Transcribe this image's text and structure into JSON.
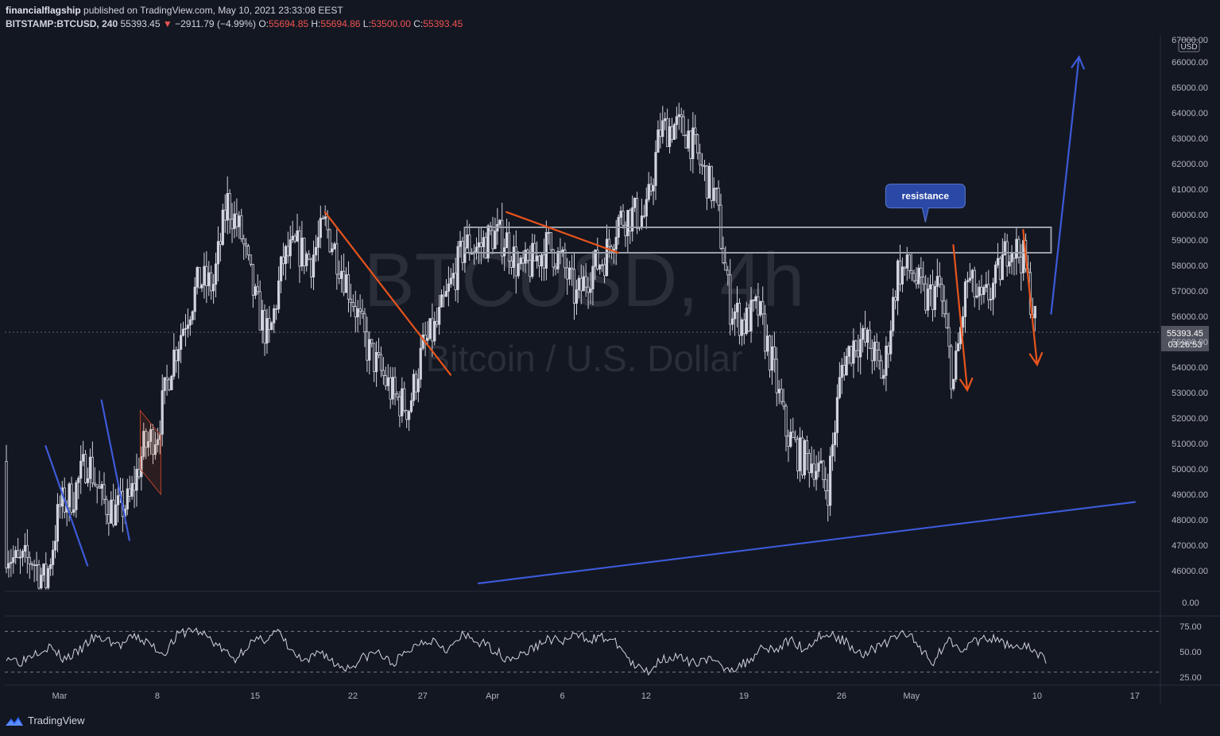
{
  "header": {
    "author": "financialflagship",
    "published_text": "published on TradingView.com, May 10, 2021 23:33:08 EEST",
    "symbol": "BITSTAMP:BTCUSD, 240",
    "last_price": "55393.45",
    "change_arrow": "▼",
    "change": "−2911.79 (−4.99%)",
    "o_label": "O:",
    "o_value": "55694.85",
    "h_label": "H:",
    "h_value": "55694.86",
    "l_label": "L:",
    "l_value": "53500.00",
    "c_label": "C:",
    "c_value": "55393.45"
  },
  "watermark": {
    "symbol": "BTCUSD, 4h",
    "description": "Bitcoin / U.S. Dollar"
  },
  "price_scale": {
    "currency": "USD",
    "ticks": [
      "67000.00",
      "66000.00",
      "65000.00",
      "64000.00",
      "63000.00",
      "62000.00",
      "61000.00",
      "60000.00",
      "59000.00",
      "58000.00",
      "57000.00",
      "56000.00",
      "55000.00",
      "54000.00",
      "53000.00",
      "52000.00",
      "51000.00",
      "50000.00",
      "49000.00",
      "48000.00",
      "47000.00",
      "46000.00"
    ],
    "last_price_label": "55393.45",
    "countdown_label": "03:26:53",
    "zero_label": "0.00"
  },
  "rsi_scale": {
    "ticks": [
      "75.00",
      "50.00",
      "25.00"
    ]
  },
  "time_axis": {
    "labels": [
      {
        "text": "Mar",
        "date": "2021-03-01"
      },
      {
        "text": "8",
        "date": "2021-03-08"
      },
      {
        "text": "15",
        "date": "2021-03-15"
      },
      {
        "text": "22",
        "date": "2021-03-22"
      },
      {
        "text": "27",
        "date": "2021-03-27"
      },
      {
        "text": "Apr",
        "date": "2021-04-01"
      },
      {
        "text": "6",
        "date": "2021-04-06"
      },
      {
        "text": "12",
        "date": "2021-04-12"
      },
      {
        "text": "19",
        "date": "2021-04-19"
      },
      {
        "text": "26",
        "date": "2021-04-26"
      },
      {
        "text": "May",
        "date": "2021-05-01"
      },
      {
        "text": "10",
        "date": "2021-05-10"
      },
      {
        "text": "17",
        "date": "2021-05-17"
      }
    ]
  },
  "annotations": {
    "resistance_label": "resistance"
  },
  "footer": {
    "brand": "TradingView"
  },
  "colors": {
    "background": "#131722",
    "candle": "#d1d4dc",
    "orange_line": "#e8541c",
    "blue_line": "#3d5ad8",
    "resistance_box": "#9aa0aa",
    "callout_bg": "#2a48a5",
    "price_label_bg": "#50535e"
  },
  "chart_data": {
    "type": "candlestick",
    "title": "BTCUSD, 4h",
    "xlabel": "",
    "ylabel": "USD",
    "ylim": [
      45300,
      67000
    ],
    "xlim": [
      "2021-02-23",
      "2021-05-20"
    ],
    "interval": "4h",
    "series_close": [
      {
        "date": "2021-02-23",
        "close": 50300
      },
      {
        "date": "2021-02-24",
        "close": 48200
      },
      {
        "date": "2021-02-25",
        "close": 47000
      },
      {
        "date": "2021-02-26",
        "close": 46200
      },
      {
        "date": "2021-02-27",
        "close": 46500
      },
      {
        "date": "2021-02-28",
        "close": 45500
      },
      {
        "date": "2021-03-01",
        "close": 48500
      },
      {
        "date": "2021-03-02",
        "close": 49000
      },
      {
        "date": "2021-03-03",
        "close": 50400
      },
      {
        "date": "2021-03-04",
        "close": 48800
      },
      {
        "date": "2021-03-05",
        "close": 48300
      },
      {
        "date": "2021-03-06",
        "close": 48700
      },
      {
        "date": "2021-03-07",
        "close": 50800
      },
      {
        "date": "2021-03-08",
        "close": 51500
      },
      {
        "date": "2021-03-09",
        "close": 54200
      },
      {
        "date": "2021-03-10",
        "close": 55900
      },
      {
        "date": "2021-03-11",
        "close": 57400
      },
      {
        "date": "2021-03-12",
        "close": 57200
      },
      {
        "date": "2021-03-13",
        "close": 60500
      },
      {
        "date": "2021-03-14",
        "close": 59200
      },
      {
        "date": "2021-03-15",
        "close": 56600
      },
      {
        "date": "2021-03-16",
        "close": 55000
      },
      {
        "date": "2021-03-17",
        "close": 58200
      },
      {
        "date": "2021-03-18",
        "close": 58700
      },
      {
        "date": "2021-03-19",
        "close": 58200
      },
      {
        "date": "2021-03-20",
        "close": 59600
      },
      {
        "date": "2021-03-21",
        "close": 58200
      },
      {
        "date": "2021-03-22",
        "close": 56700
      },
      {
        "date": "2021-03-23",
        "close": 54800
      },
      {
        "date": "2021-03-24",
        "close": 53800
      },
      {
        "date": "2021-03-25",
        "close": 52800
      },
      {
        "date": "2021-03-26",
        "close": 52400
      },
      {
        "date": "2021-03-27",
        "close": 54700
      },
      {
        "date": "2021-03-28",
        "close": 55600
      },
      {
        "date": "2021-03-29",
        "close": 57200
      },
      {
        "date": "2021-03-30",
        "close": 58800
      },
      {
        "date": "2021-03-31",
        "close": 58700
      },
      {
        "date": "2021-04-01",
        "close": 59200
      },
      {
        "date": "2021-04-02",
        "close": 59000
      },
      {
        "date": "2021-04-03",
        "close": 57700
      },
      {
        "date": "2021-04-04",
        "close": 58200
      },
      {
        "date": "2021-04-05",
        "close": 58800
      },
      {
        "date": "2021-04-06",
        "close": 58100
      },
      {
        "date": "2021-04-07",
        "close": 56700
      },
      {
        "date": "2021-04-08",
        "close": 57800
      },
      {
        "date": "2021-04-09",
        "close": 58300
      },
      {
        "date": "2021-04-10",
        "close": 59800
      },
      {
        "date": "2021-04-11",
        "close": 60000
      },
      {
        "date": "2021-04-12",
        "close": 59900
      },
      {
        "date": "2021-04-13",
        "close": 63300
      },
      {
        "date": "2021-04-14",
        "close": 63500
      },
      {
        "date": "2021-04-15",
        "close": 63200
      },
      {
        "date": "2021-04-16",
        "close": 61800
      },
      {
        "date": "2021-04-17",
        "close": 60600
      },
      {
        "date": "2021-04-18",
        "close": 56400
      },
      {
        "date": "2021-04-19",
        "close": 55700
      },
      {
        "date": "2021-04-20",
        "close": 56300
      },
      {
        "date": "2021-04-21",
        "close": 54200
      },
      {
        "date": "2021-04-22",
        "close": 51500
      },
      {
        "date": "2021-04-23",
        "close": 50500
      },
      {
        "date": "2021-04-24",
        "close": 50300
      },
      {
        "date": "2021-04-25",
        "close": 49200
      },
      {
        "date": "2021-04-26",
        "close": 54000
      },
      {
        "date": "2021-04-27",
        "close": 55100
      },
      {
        "date": "2021-04-28",
        "close": 54900
      },
      {
        "date": "2021-04-29",
        "close": 53600
      },
      {
        "date": "2021-04-30",
        "close": 57800
      },
      {
        "date": "2021-05-01",
        "close": 57800
      },
      {
        "date": "2021-05-02",
        "close": 56600
      },
      {
        "date": "2021-05-03",
        "close": 57200
      },
      {
        "date": "2021-05-04",
        "close": 53300
      },
      {
        "date": "2021-05-05",
        "close": 57500
      },
      {
        "date": "2021-05-06",
        "close": 56400
      },
      {
        "date": "2021-05-07",
        "close": 57300
      },
      {
        "date": "2021-05-08",
        "close": 58900
      },
      {
        "date": "2021-05-09",
        "close": 58300
      },
      {
        "date": "2021-05-10",
        "close": 55393
      }
    ],
    "drawings": {
      "resistance_zone": {
        "from": "2021-03-30",
        "to": "2021-05-11",
        "price_low": 58500,
        "price_high": 59500,
        "label": "resistance"
      },
      "support_trendline": [
        {
          "date": "2021-03-31",
          "price": 45500
        },
        {
          "date": "2021-04-26",
          "price": 47000
        },
        {
          "date": "2021-05-17",
          "price": 48700
        }
      ],
      "projection_arrow": {
        "from": {
          "date": "2021-05-11",
          "price": 56100
        },
        "to": {
          "date": "2021-05-13",
          "price": 66200
        }
      },
      "orange_lines": [
        {
          "from": {
            "date": "2021-03-20",
            "price": 60100
          },
          "to": {
            "date": "2021-03-29",
            "price": 53700
          }
        },
        {
          "from": {
            "date": "2021-04-02",
            "price": 60100
          },
          "to": {
            "date": "2021-04-10",
            "price": 58500
          }
        },
        {
          "from": {
            "date": "2021-05-04",
            "price": 58800
          },
          "to": {
            "date": "2021-05-05",
            "price": 53100
          }
        },
        {
          "from": {
            "date": "2021-05-09",
            "price": 59400
          },
          "to": {
            "date": "2021-05-10",
            "price": 54100
          }
        }
      ],
      "blue_swings": [
        {
          "from": {
            "date": "2021-02-28",
            "price": 50900
          },
          "to": {
            "date": "2021-03-03",
            "price": 46200
          }
        },
        {
          "from": {
            "date": "2021-03-04",
            "price": 52700
          },
          "to": {
            "date": "2021-03-06",
            "price": 47200
          }
        }
      ]
    },
    "rsi": {
      "period": 14,
      "upper": 70,
      "lower": 30,
      "ylim": [
        20,
        80
      ],
      "values": [
        46,
        40,
        50,
        55,
        43,
        49,
        63,
        62,
        56,
        65,
        58,
        48,
        66,
        72,
        66,
        54,
        42,
        58,
        62,
        70,
        50,
        38,
        52,
        38,
        34,
        44,
        50,
        38,
        48,
        60,
        62,
        52,
        66,
        60,
        54,
        44,
        46,
        54,
        63,
        60,
        66,
        63,
        64,
        56,
        35,
        31,
        44,
        45,
        38,
        44,
        36,
        34,
        40,
        56,
        52,
        62,
        52,
        66,
        66,
        58,
        48,
        54,
        61,
        70,
        55,
        40,
        62,
        54,
        60,
        63,
        58,
        56,
        52,
        40
      ]
    }
  }
}
